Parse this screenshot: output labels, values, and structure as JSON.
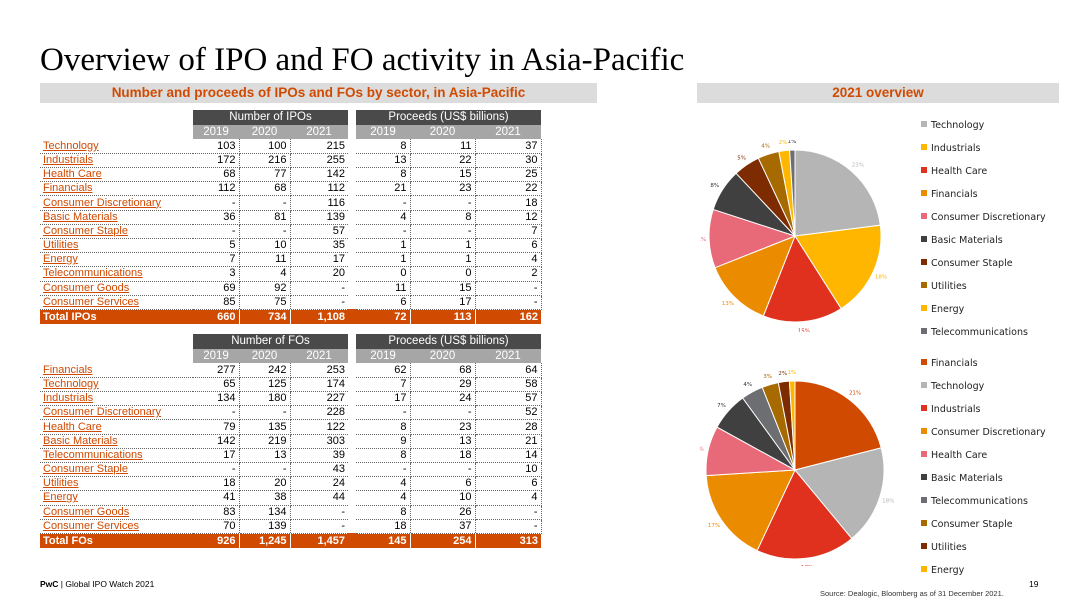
{
  "title": "Overview of IPO and FO activity in Asia-Pacific",
  "left_heading": "Number and proceeds of IPOs and FOs by sector, in Asia-Pacific",
  "right_heading": "2021 overview",
  "ipo_table": {
    "group_count": "Number of IPOs",
    "group_proceeds": "Proceeds (US$ billions)",
    "years": [
      "2019",
      "2020",
      "2021",
      "2019",
      "2020",
      "2021"
    ],
    "rows": [
      {
        "label": "Technology",
        "values": [
          "103",
          "100",
          "215",
          "8",
          "11",
          "37"
        ]
      },
      {
        "label": "Industrials",
        "values": [
          "172",
          "216",
          "255",
          "13",
          "22",
          "30"
        ]
      },
      {
        "label": "Health Care",
        "values": [
          "68",
          "77",
          "142",
          "8",
          "15",
          "25"
        ]
      },
      {
        "label": "Financials",
        "values": [
          "112",
          "68",
          "112",
          "21",
          "23",
          "22"
        ]
      },
      {
        "label": "Consumer Discretionary",
        "values": [
          "-",
          "-",
          "116",
          "-",
          "-",
          "18"
        ]
      },
      {
        "label": "Basic Materials",
        "values": [
          "36",
          "81",
          "139",
          "4",
          "8",
          "12"
        ]
      },
      {
        "label": "Consumer Staple",
        "values": [
          "-",
          "-",
          "57",
          "-",
          "-",
          "7"
        ]
      },
      {
        "label": "Utilities",
        "values": [
          "5",
          "10",
          "35",
          "1",
          "1",
          "6"
        ]
      },
      {
        "label": "Energy",
        "values": [
          "7",
          "11",
          "17",
          "1",
          "1",
          "4"
        ]
      },
      {
        "label": "Telecommunications",
        "values": [
          "3",
          "4",
          "20",
          "0",
          "0",
          "2"
        ]
      },
      {
        "label": "Consumer Goods",
        "values": [
          "69",
          "92",
          "-",
          "11",
          "15",
          "-"
        ]
      },
      {
        "label": "Consumer Services",
        "values": [
          "85",
          "75",
          "-",
          "6",
          "17",
          "-"
        ]
      }
    ],
    "total": {
      "label": "Total IPOs",
      "values": [
        "660",
        "734",
        "1,108",
        "72",
        "113",
        "162"
      ]
    }
  },
  "fo_table": {
    "group_count": "Number of FOs",
    "group_proceeds": "Proceeds (US$ billions)",
    "years": [
      "2019",
      "2020",
      "2021",
      "2019",
      "2020",
      "2021"
    ],
    "rows": [
      {
        "label": "Financials",
        "values": [
          "277",
          "242",
          "253",
          "62",
          "68",
          "64"
        ]
      },
      {
        "label": "Technology",
        "values": [
          "65",
          "125",
          "174",
          "7",
          "29",
          "58"
        ]
      },
      {
        "label": "Industrials",
        "values": [
          "134",
          "180",
          "227",
          "17",
          "24",
          "57"
        ]
      },
      {
        "label": "Consumer Discretionary",
        "values": [
          "-",
          "-",
          "228",
          "-",
          "-",
          "52"
        ]
      },
      {
        "label": "Health Care",
        "values": [
          "79",
          "135",
          "122",
          "8",
          "23",
          "28"
        ]
      },
      {
        "label": "Basic Materials",
        "values": [
          "142",
          "219",
          "303",
          "9",
          "13",
          "21"
        ]
      },
      {
        "label": "Telecommunications",
        "values": [
          "17",
          "13",
          "39",
          "8",
          "18",
          "14"
        ]
      },
      {
        "label": "Consumer Staple",
        "values": [
          "-",
          "-",
          "43",
          "-",
          "-",
          "10"
        ]
      },
      {
        "label": "Utilities",
        "values": [
          "18",
          "20",
          "24",
          "4",
          "6",
          "6"
        ]
      },
      {
        "label": "Energy",
        "values": [
          "41",
          "38",
          "44",
          "4",
          "10",
          "4"
        ]
      },
      {
        "label": "Consumer Goods",
        "values": [
          "83",
          "134",
          "-",
          "8",
          "26",
          "-"
        ]
      },
      {
        "label": "Consumer Services",
        "values": [
          "70",
          "139",
          "-",
          "18",
          "37",
          "-"
        ]
      }
    ],
    "total": {
      "label": "Total FOs",
      "values": [
        "926",
        "1,245",
        "1,457",
        "145",
        "254",
        "313"
      ]
    }
  },
  "chart_data": [
    {
      "type": "pie",
      "slices": [
        {
          "label": "Technology",
          "value": 23,
          "pct_label": "23%",
          "color": "#b5b5b5"
        },
        {
          "label": "Industrials",
          "value": 18,
          "pct_label": "18%",
          "color": "#ffb600"
        },
        {
          "label": "Health Care",
          "value": 15,
          "pct_label": "15%",
          "color": "#e0301e"
        },
        {
          "label": "Financials",
          "value": 13,
          "pct_label": "13%",
          "color": "#eb8c00"
        },
        {
          "label": "Consumer Discretionary",
          "value": 11,
          "pct_label": "11%",
          "color": "#e86a78"
        },
        {
          "label": "Basic Materials",
          "value": 8,
          "pct_label": "8%",
          "color": "#404041"
        },
        {
          "label": "Consumer Staple",
          "value": 5,
          "pct_label": "5%",
          "color": "#7d2b00"
        },
        {
          "label": "Utilities",
          "value": 4,
          "pct_label": "4%",
          "color": "#a66a00"
        },
        {
          "label": "Energy",
          "value": 2,
          "pct_label": "2%",
          "color": "#ffb600"
        },
        {
          "label": "Telecommunications",
          "value": 1,
          "pct_label": "1%",
          "color": "#6d6e71"
        }
      ]
    },
    {
      "type": "pie",
      "slices": [
        {
          "label": "Financials",
          "value": 21,
          "pct_label": "21%",
          "color": "#d04a02"
        },
        {
          "label": "Technology",
          "value": 18,
          "pct_label": "18%",
          "color": "#b5b5b5"
        },
        {
          "label": "Industrials",
          "value": 18,
          "pct_label": "18%",
          "color": "#e0301e"
        },
        {
          "label": "Consumer Discretionary",
          "value": 17,
          "pct_label": "17%",
          "color": "#eb8c00"
        },
        {
          "label": "Health Care",
          "value": 9,
          "pct_label": "9%",
          "color": "#e86a78"
        },
        {
          "label": "Basic Materials",
          "value": 7,
          "pct_label": "7%",
          "color": "#404041"
        },
        {
          "label": "Telecommunications",
          "value": 4,
          "pct_label": "4%",
          "color": "#6d6e71"
        },
        {
          "label": "Consumer Staple",
          "value": 3,
          "pct_label": "3%",
          "color": "#a66a00"
        },
        {
          "label": "Utilities",
          "value": 2,
          "pct_label": "2%",
          "color": "#7d2b00"
        },
        {
          "label": "Energy",
          "value": 1,
          "pct_label": "1%",
          "color": "#ffb600"
        }
      ]
    }
  ],
  "footer": {
    "brand": "PwC",
    "separator": " | ",
    "report": "Global IPO Watch 2021"
  },
  "page_number": "19",
  "source": "Source: Dealogic, Bloomberg as of 31 December 2021."
}
